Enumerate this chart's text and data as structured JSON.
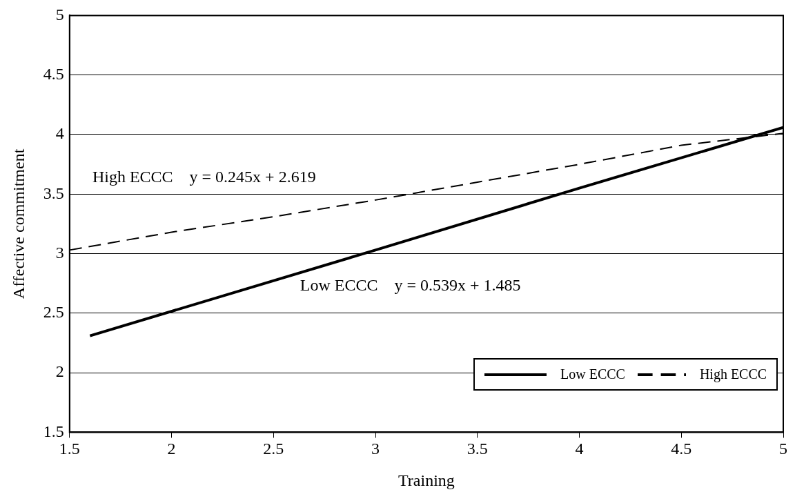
{
  "chart_data": {
    "type": "line",
    "xlabel": "Training",
    "ylabel": "Affective commitment",
    "xlim": [
      1.5,
      5
    ],
    "xticks": [
      1.5,
      2,
      2.5,
      3,
      3.5,
      4,
      4.5,
      5
    ],
    "ylim": [
      1.5,
      5
    ],
    "yticks": [
      1.5,
      2,
      2.5,
      3,
      3.5,
      4,
      4.5,
      5
    ],
    "grid": "y",
    "legend": "bottom right",
    "marker": "none",
    "series": [
      {
        "name": "Low ECCC",
        "color": "#000000",
        "line_style": "solid",
        "x": [
          1.6,
          3,
          4,
          5
        ],
        "values": [
          2.31,
          3.03,
          3.55,
          4.06
        ]
      },
      {
        "name": "High ECCC",
        "color": "#000000",
        "line_style": "dashed",
        "x": [
          1.5,
          2,
          2.5,
          3,
          3.5,
          4,
          4.5,
          5
        ],
        "values": [
          3.03,
          3.18,
          3.31,
          3.45,
          3.6,
          3.75,
          3.91,
          4.01
        ]
      }
    ],
    "annotations": [
      "High ECCC    y = 0.245x + 2.619",
      "Low ECCC    y = 0.539x + 1.485"
    ]
  }
}
